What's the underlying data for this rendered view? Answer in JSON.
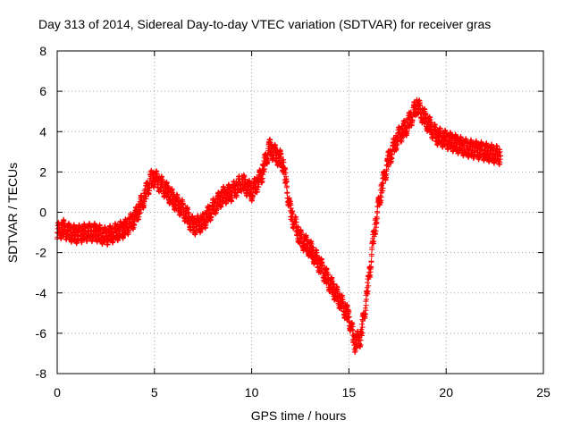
{
  "chart_data": {
    "type": "scatter",
    "title": "Day 313 of 2014, Sidereal Day-to-day VTEC variation (SDTVAR) for receiver gras",
    "xlabel": "GPS time / hours",
    "ylabel": "SDTVAR / TECUs",
    "xlim": [
      0,
      25
    ],
    "ylim": [
      -8,
      8
    ],
    "xticks": [
      0,
      5,
      10,
      15,
      20,
      25
    ],
    "yticks": [
      -8,
      -6,
      -4,
      -2,
      0,
      2,
      4,
      6,
      8
    ],
    "grid": true,
    "marker": "+",
    "series": [
      {
        "name": "SDTVAR",
        "color": "#ff0000",
        "band_width": 0.9,
        "x": [
          0.0,
          0.3,
          0.6,
          1.0,
          1.5,
          2.0,
          2.5,
          3.0,
          3.5,
          4.0,
          4.5,
          4.8,
          5.0,
          5.5,
          6.0,
          6.5,
          7.0,
          7.5,
          8.0,
          8.5,
          9.0,
          9.5,
          10.0,
          10.5,
          10.9,
          11.3,
          11.6,
          12.0,
          12.5,
          13.0,
          13.5,
          14.0,
          14.5,
          15.0,
          15.3,
          15.6,
          15.8,
          16.0,
          16.3,
          16.6,
          17.0,
          17.5,
          18.0,
          18.5,
          19.0,
          19.5,
          20.0,
          20.5,
          21.0,
          21.5,
          22.0,
          22.8
        ],
        "y": [
          -1.0,
          -0.8,
          -1.0,
          -1.1,
          -1.0,
          -1.0,
          -1.2,
          -1.0,
          -0.8,
          -0.3,
          0.8,
          1.6,
          1.7,
          1.2,
          0.6,
          0.1,
          -0.7,
          -0.5,
          0.2,
          0.8,
          1.0,
          1.5,
          1.0,
          1.8,
          3.2,
          2.8,
          2.5,
          0.0,
          -1.3,
          -1.8,
          -2.6,
          -3.5,
          -4.3,
          -5.2,
          -6.5,
          -6.2,
          -5.0,
          -3.5,
          -1.0,
          0.8,
          2.5,
          3.7,
          4.3,
          5.3,
          4.5,
          3.8,
          3.6,
          3.4,
          3.2,
          3.1,
          3.0,
          2.8
        ]
      }
    ]
  }
}
